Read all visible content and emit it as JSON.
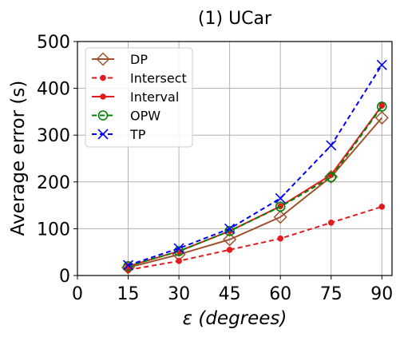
{
  "chart_data": {
    "type": "line",
    "title": "(1) UCar",
    "xlabel_symbol": "ε",
    "xlabel_unit": "(degrees)",
    "ylabel": "Average error (s)",
    "x": [
      15,
      30,
      45,
      60,
      75,
      90
    ],
    "xlim": [
      0,
      93
    ],
    "xticks": [
      0,
      15,
      30,
      45,
      60,
      75,
      90
    ],
    "ylim": [
      0,
      500
    ],
    "yticks": [
      0,
      100,
      200,
      300,
      400,
      500
    ],
    "grid": true,
    "legend_position": "top-left",
    "series": [
      {
        "name": "DP",
        "values": [
          17,
          45,
          77,
          125,
          211,
          337
        ],
        "color": "#a0522d",
        "line": "solid",
        "marker": "diamond-open"
      },
      {
        "name": "Intersect",
        "values": [
          12,
          31,
          55,
          79,
          113,
          147
        ],
        "color": "#e41a1c",
        "line": "dashed",
        "marker": "dot"
      },
      {
        "name": "Interval",
        "values": [
          20,
          52,
          95,
          148,
          215,
          363
        ],
        "color": "#e41a1c",
        "line": "solid",
        "marker": "dot"
      },
      {
        "name": "OPW",
        "values": [
          20,
          52,
          95,
          147,
          210,
          361
        ],
        "color": "#008000",
        "line": "dashed",
        "marker": "circle-open"
      },
      {
        "name": "TP",
        "values": [
          22,
          58,
          100,
          165,
          278,
          450
        ],
        "color": "#0000ff",
        "line": "dashed",
        "marker": "x"
      }
    ]
  }
}
